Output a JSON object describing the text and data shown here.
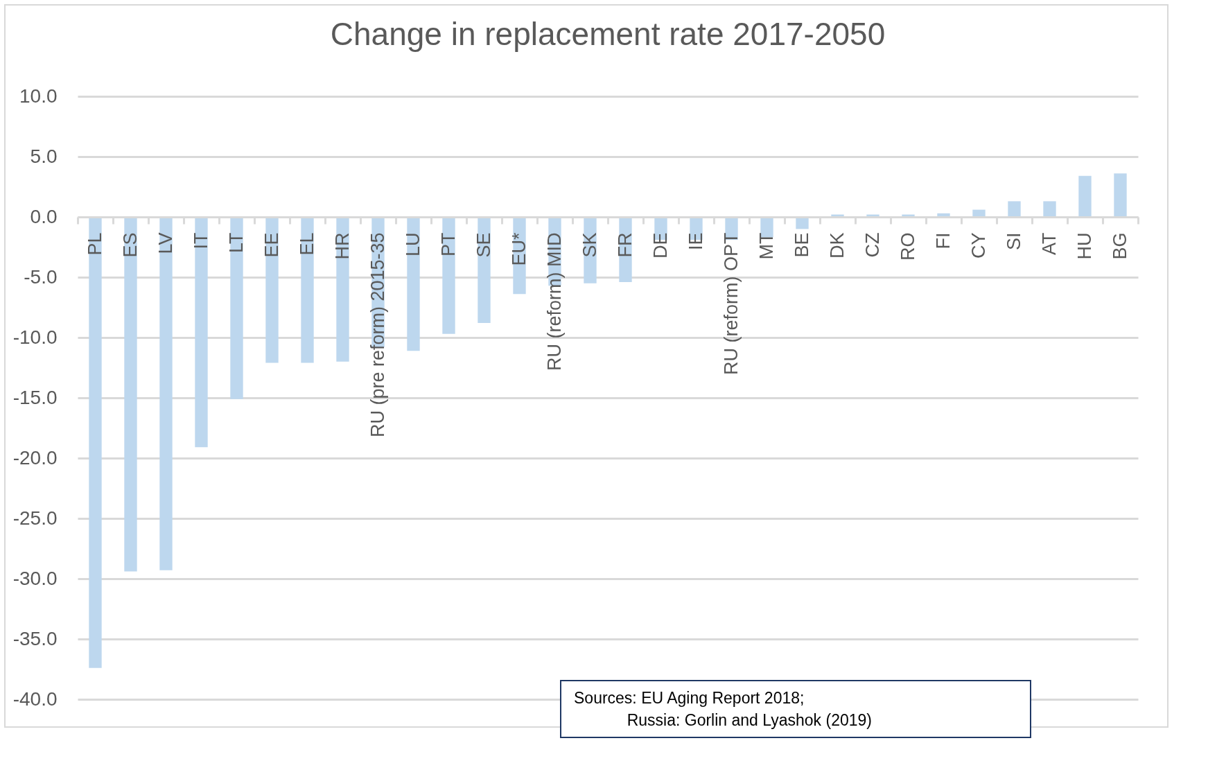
{
  "chart_data": {
    "type": "bar",
    "title": "Change in replacement rate 2017-2050",
    "categories": [
      "PL",
      "ES",
      "LV",
      "IT",
      "LT",
      "EE",
      "EL",
      "HR",
      "RU (pre reform) 2015-35",
      "LU",
      "PT",
      "SE",
      "EU*",
      "RU (reform) MID",
      "SK",
      "FR",
      "DE",
      "IE",
      "RU (reform) OPT",
      "MT",
      "BE",
      "DK",
      "CZ",
      "RO",
      "FI",
      "CY",
      "SI",
      "AT",
      "HU",
      "BG"
    ],
    "values": [
      -37.4,
      -29.4,
      -29.3,
      -19.1,
      -15.1,
      -12.1,
      -12.1,
      -12.0,
      -10.8,
      -11.1,
      -9.7,
      -8.8,
      -6.4,
      -5.7,
      -5.5,
      -5.4,
      -1.9,
      -1.9,
      -1.9,
      -1.7,
      -1.0,
      0.2,
      0.2,
      0.2,
      0.3,
      0.6,
      1.3,
      1.3,
      3.4,
      3.6
    ],
    "color": "#bdd7ee",
    "ylim": [
      -40,
      10
    ],
    "yticks": [
      {
        "value": 10,
        "label": "10.0"
      },
      {
        "value": 5,
        "label": "5.0"
      },
      {
        "value": 0,
        "label": "0.0"
      },
      {
        "value": -5,
        "label": "-5.0"
      },
      {
        "value": -10,
        "label": "-10.0"
      },
      {
        "value": -15,
        "label": "-15.0"
      },
      {
        "value": -20,
        "label": "-20.0"
      },
      {
        "value": -25,
        "label": "-25.0"
      },
      {
        "value": -30,
        "label": "-30.0"
      },
      {
        "value": -35,
        "label": "-35.0"
      },
      {
        "value": -40,
        "label": "-40.0"
      }
    ],
    "grid": "y",
    "annotations": [
      "Sources: EU Aging Report 2018;\n            Russia: Gorlin and Lyashok (2019)"
    ]
  }
}
